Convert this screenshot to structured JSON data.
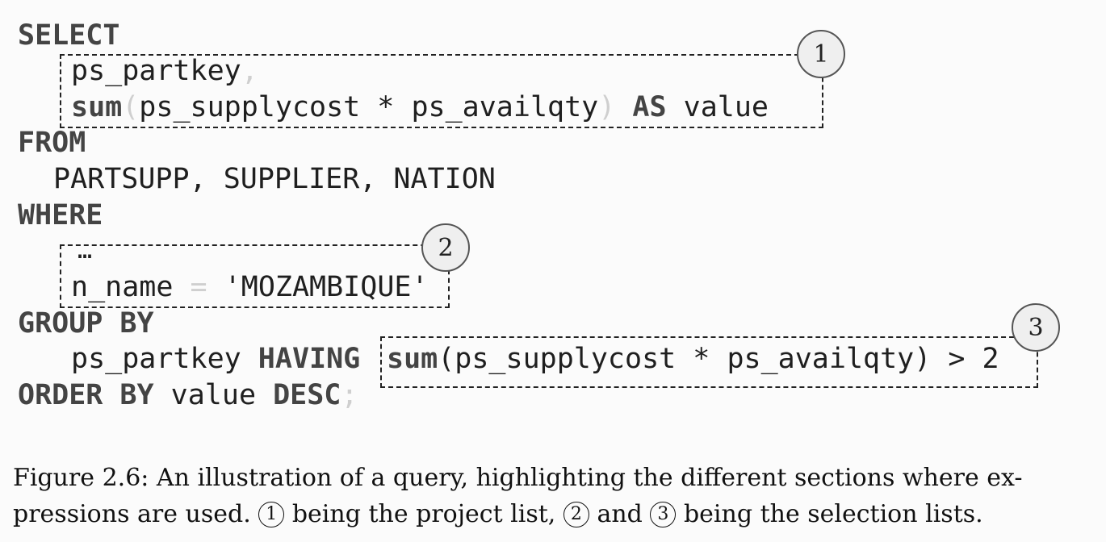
{
  "query": {
    "select_kw": "SELECT",
    "proj_col": "ps_partkey",
    "comma": ",",
    "sum_kw": "sum",
    "paren_open": "(",
    "sum_expr": "ps_supplycost * ps_availqty",
    "paren_close": ")",
    "as_kw": "AS",
    "alias": "value",
    "from_kw": "FROM",
    "tables": "PARTSUPP, SUPPLIER, NATION",
    "where_kw": "WHERE",
    "ellipsis": "…",
    "cond_left": "n_name",
    "eq": "=",
    "cond_right": "'MOZAMBIQUE'",
    "group_kw": "GROUP BY",
    "group_col": "ps_partkey",
    "having_kw": "HAVING",
    "having_sum_kw": "sum",
    "having_expr": "(ps_supplycost * ps_availqty) > 2",
    "order_kw": "ORDER BY",
    "order_col": "value",
    "desc_kw": "DESC",
    "semicolon": ";"
  },
  "markers": {
    "one": "1",
    "two": "2",
    "three": "3"
  },
  "caption": {
    "part1": "Figure 2.6: An illustration of a query, highlighting the different sections where ex-pressions are used.",
    "marker_one": "1",
    "part2": "being the project list,",
    "marker_two": "2",
    "part3": "and",
    "marker_three": "3",
    "part4": "being the selection lists."
  }
}
